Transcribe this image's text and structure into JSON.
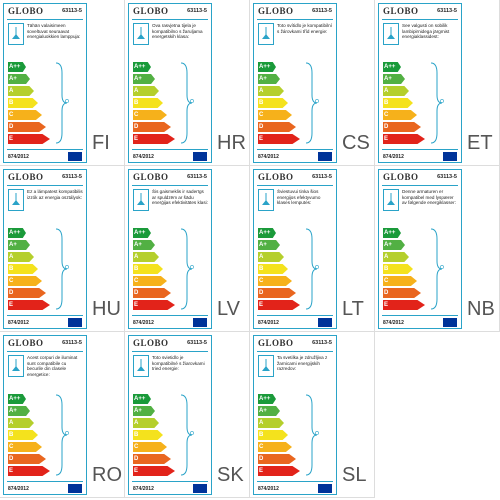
{
  "brand": "GLOBO",
  "model": "63113-5",
  "regulation": "874/2012",
  "classes": [
    {
      "name": "A++",
      "color": "#1a9a3a"
    },
    {
      "name": "A+",
      "color": "#52b043"
    },
    {
      "name": "A",
      "color": "#b5cf2c"
    },
    {
      "name": "B",
      "color": "#f4e21d"
    },
    {
      "name": "C",
      "color": "#f6b11b"
    },
    {
      "name": "D",
      "color": "#e9661f"
    },
    {
      "name": "E",
      "color": "#e2231a"
    }
  ],
  "labels": [
    {
      "lang": "FI",
      "text": "Tähän valaisimeen soveltuvat seuraavat energialuokkien lamppuja:"
    },
    {
      "lang": "HR",
      "text": "Ova rasvjetna tijela je kompatibilno s žaruljama energetskih klasa:"
    },
    {
      "lang": "CS",
      "text": "Toto svítidlo je kompatibilní s žárovkami tříd energie:"
    },
    {
      "lang": "ET",
      "text": "See valgusti on sobilik lambipirnidega järgmist energiaklassidest:"
    },
    {
      "lang": "HU",
      "text": "Ez a lámpatest kompatibilis izzók az energia osztályok:"
    },
    {
      "lang": "LV",
      "text": "Šis gaismeklis ir saderīgs ar spuldzēm ar šādu enerģijas efektivitātes klasi:"
    },
    {
      "lang": "LT",
      "text": "Šviestuvui tinka šios energijos efektyvumo klasės lemputės:"
    },
    {
      "lang": "NB",
      "text": "Denne armaturen er kompatibel med lyspærer av følgende energiklasser:"
    },
    {
      "lang": "RO",
      "text": "Acest corpuri de iluminat sunt compatibile cu becurile din clasele energetice:"
    },
    {
      "lang": "SK",
      "text": "Toto svietidlo je kompatibilné s žiarovkami tried energie:"
    },
    {
      "lang": "SL",
      "text": "Ta svetilka je združljiva z žarnicami energijskih razredov:"
    }
  ]
}
